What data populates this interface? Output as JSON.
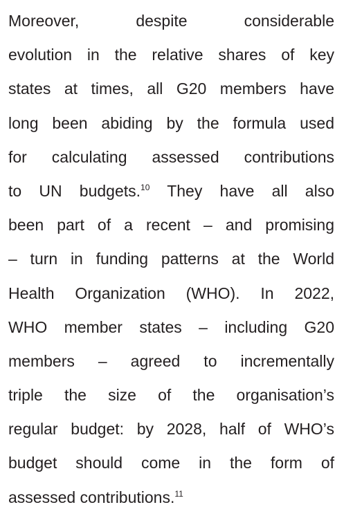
{
  "paragraph": {
    "lines": [
      [
        "Moreover, despite considerable"
      ],
      [
        "evolution in the relative shares of key"
      ],
      [
        "states at times, all G20 members have"
      ],
      [
        "long been abiding by the formula used"
      ],
      [
        "for calculating assessed contributions"
      ],
      [
        "to UN budgets.",
        {
          "sup": "10"
        },
        " They have all also"
      ],
      [
        "been part of a recent – and promising"
      ],
      [
        "– turn in funding patterns at the World"
      ],
      [
        "Health Organization (WHO). In 2022,"
      ],
      [
        "WHO member states – including G20"
      ],
      [
        "members – agreed to incrementally"
      ],
      [
        "triple the size of the organisation’s"
      ],
      [
        "regular budget: by 2028, half of WHO’s"
      ],
      [
        "budget should come in the form of"
      ],
      [
        "assessed contributions.",
        {
          "sup": "11"
        }
      ]
    ]
  }
}
